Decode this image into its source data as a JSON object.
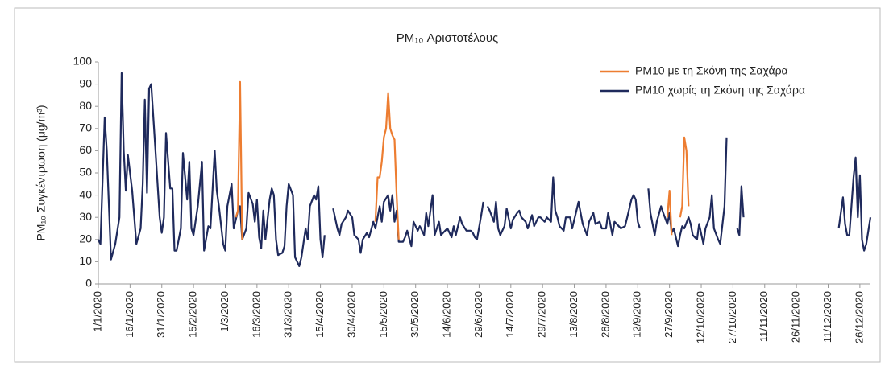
{
  "chart_data": {
    "type": "line",
    "title": "PM₁₀ Αριστοτέλους",
    "y_label": "PM₁₀ Συγκέντρωση  (μg/m³)",
    "xlim": [
      "1/1/2020",
      "31/12/2020"
    ],
    "xticks": [
      "1/1/2020",
      "16/1/2020",
      "31/1/2020",
      "15/2/2020",
      "1/3/2020",
      "16/3/2020",
      "31/3/2020",
      "15/4/2020",
      "30/4/2020",
      "15/5/2020",
      "30/5/2020",
      "14/6/2020",
      "29/6/2020",
      "14/7/2020",
      "29/7/2020",
      "13/8/2020",
      "28/8/2020",
      "12/9/2020",
      "27/9/2020",
      "12/10/2020",
      "27/10/2020",
      "11/11/2020",
      "26/11/2020",
      "11/12/2020",
      "26/12/2020"
    ],
    "ylim": [
      0,
      100
    ],
    "yticks": [
      0,
      10,
      20,
      30,
      40,
      50,
      60,
      70,
      80,
      90,
      100
    ],
    "grid": false,
    "legend": "top-right",
    "series": [
      {
        "name": "PM10 με τη Σκόνη της Σαχάρα",
        "color": "#ed7d31",
        "x": [
          "6/3/2020",
          "7/3/2020",
          "8/3/2020",
          "9/3/2020",
          "11/3/2020",
          "11/5/2020",
          "12/5/2020",
          "13/5/2020",
          "14/5/2020",
          "15/5/2020",
          "16/5/2020",
          "17/5/2020",
          "18/5/2020",
          "19/5/2020",
          "20/5/2020",
          "21/5/2020",
          "22/5/2020",
          "19/7/2020",
          "26/9/2020",
          "27/9/2020",
          "28/9/2020",
          "30/9/2020",
          "2/10/2020",
          "3/10/2020",
          "4/10/2020",
          "5/10/2020",
          "6/10/2020"
        ],
        "values": [
          30,
          33,
          91,
          20,
          null,
          28,
          48,
          48,
          55,
          66,
          70,
          86,
          70,
          67,
          65,
          40,
          20,
          null,
          30,
          42,
          22,
          null,
          30,
          35,
          66,
          60,
          35
        ]
      },
      {
        "name": "PM10 χωρίς τη Σκόνη της Σαχάρα",
        "color": "#1f2a5c",
        "x": [
          "1/1/2020",
          "2/1/2020",
          "4/1/2020",
          "5/1/2020",
          "7/1/2020",
          "9/1/2020",
          "11/1/2020",
          "12/1/2020",
          "13/1/2020",
          "14/1/2020",
          "15/1/2020",
          "17/1/2020",
          "19/1/2020",
          "21/1/2020",
          "22/1/2020",
          "23/1/2020",
          "24/1/2020",
          "25/1/2020",
          "26/1/2020",
          "28/1/2020",
          "30/1/2020",
          "31/1/2020",
          "1/2/2020",
          "2/2/2020",
          "4/2/2020",
          "5/2/2020",
          "6/2/2020",
          "7/2/2020",
          "9/2/2020",
          "10/2/2020",
          "12/2/2020",
          "13/2/2020",
          "14/2/2020",
          "15/2/2020",
          "17/2/2020",
          "19/2/2020",
          "20/2/2020",
          "22/2/2020",
          "23/2/2020",
          "25/2/2020",
          "26/2/2020",
          "27/2/2020",
          "29/2/2020",
          "1/3/2020",
          "2/3/2020",
          "4/3/2020",
          "5/3/2020",
          "7/3/2020",
          "8/3/2020",
          "9/3/2020",
          "11/3/2020",
          "12/3/2020",
          "14/3/2020",
          "15/3/2020",
          "16/3/2020",
          "17/3/2020",
          "18/3/2020",
          "19/3/2020",
          "20/3/2020",
          "22/3/2020",
          "23/3/2020",
          "24/3/2020",
          "25/3/2020",
          "26/3/2020",
          "28/3/2020",
          "29/3/2020",
          "30/3/2020",
          "31/3/2020",
          "2/4/2020",
          "3/4/2020",
          "5/4/2020",
          "6/4/2020",
          "8/4/2020",
          "9/4/2020",
          "10/4/2020",
          "12/4/2020",
          "13/4/2020",
          "14/4/2020",
          "15/4/2020",
          "16/4/2020",
          "17/4/2020",
          "20/4/2020",
          "21/4/2020",
          "23/4/2020",
          "24/4/2020",
          "25/4/2020",
          "27/4/2020",
          "28/4/2020",
          "30/4/2020",
          "1/5/2020",
          "3/5/2020",
          "4/5/2020",
          "5/5/2020",
          "7/5/2020",
          "8/5/2020",
          "10/5/2020",
          "11/5/2020",
          "13/5/2020",
          "14/5/2020",
          "15/5/2020",
          "17/5/2020",
          "18/5/2020",
          "19/5/2020",
          "20/5/2020",
          "21/5/2020",
          "22/5/2020",
          "24/5/2020",
          "25/5/2020",
          "26/5/2020",
          "28/5/2020",
          "29/5/2020",
          "31/5/2020",
          "1/6/2020",
          "3/6/2020",
          "4/6/2020",
          "5/6/2020",
          "7/6/2020",
          "8/6/2020",
          "10/6/2020",
          "11/6/2020",
          "13/6/2020",
          "14/6/2020",
          "16/6/2020",
          "17/6/2020",
          "18/6/2020",
          "20/6/2020",
          "21/6/2020",
          "23/6/2020",
          "25/6/2020",
          "26/6/2020",
          "27/6/2020",
          "28/6/2020",
          "30/6/2020",
          "1/7/2020",
          "2/7/2020",
          "3/7/2020",
          "4/7/2020",
          "6/7/2020",
          "7/7/2020",
          "8/7/2020",
          "9/7/2020",
          "11/7/2020",
          "12/7/2020",
          "14/7/2020",
          "15/7/2020",
          "17/7/2020",
          "18/7/2020",
          "19/7/2020",
          "21/7/2020",
          "22/7/2020",
          "24/7/2020",
          "25/7/2020",
          "27/7/2020",
          "28/7/2020",
          "30/7/2020",
          "31/7/2020",
          "2/8/2020",
          "3/8/2020",
          "4/8/2020",
          "5/8/2020",
          "6/8/2020",
          "8/8/2020",
          "9/8/2020",
          "11/8/2020",
          "12/8/2020",
          "14/8/2020",
          "15/8/2020",
          "17/8/2020",
          "19/8/2020",
          "20/8/2020",
          "22/8/2020",
          "23/8/2020",
          "25/8/2020",
          "26/8/2020",
          "28/8/2020",
          "29/8/2020",
          "31/8/2020",
          "1/9/2020",
          "3/9/2020",
          "4/9/2020",
          "6/9/2020",
          "7/9/2020",
          "9/9/2020",
          "10/9/2020",
          "11/9/2020",
          "12/9/2020",
          "13/9/2020",
          "15/9/2020",
          "17/9/2020",
          "18/9/2020",
          "20/9/2020",
          "21/9/2020",
          "23/9/2020",
          "24/9/2020",
          "26/9/2020",
          "27/9/2020",
          "28/9/2020",
          "29/9/2020",
          "1/10/2020",
          "2/10/2020",
          "3/10/2020",
          "4/10/2020",
          "6/10/2020",
          "7/10/2020",
          "8/10/2020",
          "10/10/2020",
          "11/10/2020",
          "13/10/2020",
          "14/10/2020",
          "16/10/2020",
          "17/10/2020",
          "18/10/2020",
          "20/10/2020",
          "21/10/2020",
          "23/10/2020",
          "24/10/2020",
          "27/10/2020",
          "29/10/2020",
          "30/10/2020",
          "31/10/2020",
          "1/11/2020",
          "16/11/2020",
          "16/12/2020",
          "18/12/2020",
          "19/12/2020",
          "20/12/2020",
          "21/12/2020",
          "23/12/2020",
          "24/12/2020",
          "25/12/2020",
          "26/12/2020",
          "27/12/2020",
          "28/12/2020",
          "29/12/2020",
          "31/12/2020"
        ],
        "values": [
          20,
          18,
          75,
          60,
          11,
          18,
          30,
          95,
          60,
          42,
          58,
          42,
          18,
          25,
          45,
          83,
          41,
          88,
          90,
          60,
          30,
          23,
          30,
          68,
          43,
          43,
          15,
          15,
          25,
          59,
          38,
          55,
          25,
          22,
          35,
          55,
          15,
          26,
          25,
          60,
          42,
          35,
          18,
          15,
          35,
          45,
          25,
          33,
          35,
          20,
          25,
          41,
          36,
          28,
          38,
          21,
          16,
          33,
          20,
          38,
          43,
          40,
          20,
          13,
          14,
          17,
          35,
          45,
          40,
          12,
          8,
          12,
          25,
          20,
          35,
          40,
          38,
          44,
          20,
          12,
          22,
          null,
          34,
          25,
          22,
          27,
          30,
          33,
          30,
          22,
          20,
          14,
          20,
          23,
          21,
          28,
          25,
          35,
          28,
          37,
          40,
          33,
          40,
          28,
          33,
          19,
          19,
          21,
          24,
          17,
          28,
          24,
          26,
          22,
          32,
          26,
          40,
          22,
          28,
          22,
          24,
          25,
          21,
          26,
          22,
          30,
          27,
          24,
          24,
          23,
          21,
          20,
          31,
          37,
          null,
          35,
          33,
          28,
          37,
          25,
          22,
          26,
          34,
          25,
          29,
          32,
          33,
          30,
          28,
          25,
          31,
          26,
          30,
          30,
          28,
          30,
          28,
          48,
          33,
          30,
          26,
          24,
          30,
          30,
          25,
          33,
          37,
          27,
          22,
          28,
          32,
          27,
          28,
          25,
          25,
          32,
          22,
          28,
          26,
          25,
          26,
          30,
          38,
          40,
          38,
          28,
          25,
          null,
          43,
          32,
          22,
          28,
          35,
          32,
          27,
          32,
          23,
          25,
          17,
          22,
          26,
          25,
          30,
          27,
          22,
          20,
          27,
          18,
          25,
          30,
          40,
          25,
          20,
          18,
          35,
          66,
          null,
          25,
          22,
          44,
          30,
          null,
          25,
          39,
          27,
          22,
          22,
          48,
          57,
          30,
          49,
          20,
          15,
          18,
          30
        ]
      }
    ]
  }
}
